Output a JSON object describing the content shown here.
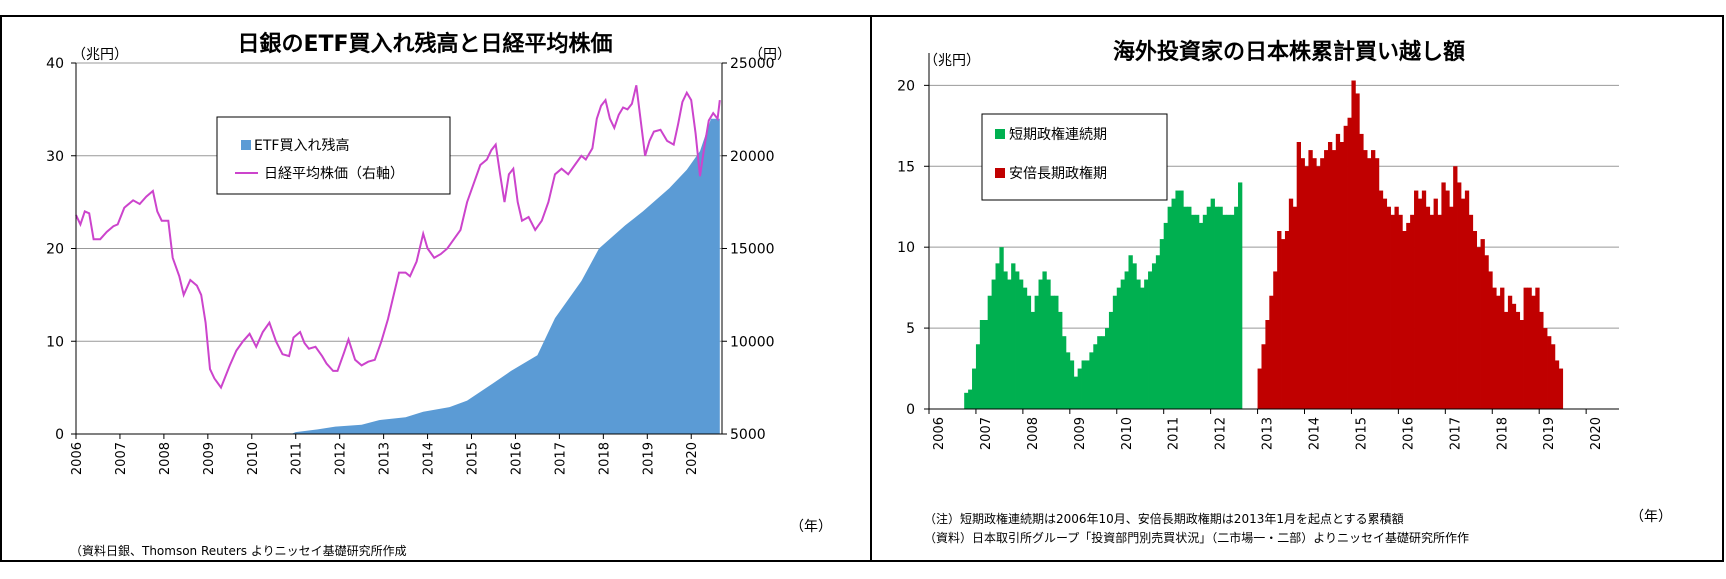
{
  "chart_data": [
    {
      "type": "bar+line",
      "title": "日銀のETF買入れ残高と日経平均株価",
      "ylabel_left": "（兆円）",
      "ylabel_right": "（円）",
      "xlabel": "（年）",
      "left_ticks": [
        "0",
        "10",
        "20",
        "30",
        "40"
      ],
      "right_ticks": [
        "5000",
        "10000",
        "15000",
        "20000",
        "25000"
      ],
      "left_range": [
        0,
        40
      ],
      "right_range": [
        5000,
        25000
      ],
      "x_ticks": [
        "2006",
        "2007",
        "2008",
        "2009",
        "2010",
        "2011",
        "2012",
        "2013",
        "2014",
        "2015",
        "2016",
        "2017",
        "2018",
        "2019",
        "2020"
      ],
      "legend": [
        "ETF買入れ残高",
        "日経平均株価（右軸）"
      ],
      "source": "（資料日銀、Thomson Reuters よりニッセイ基礎研究所作成",
      "colors": {
        "etf": "#5b9bd5",
        "nikkei": "#cc44cc",
        "grid": "#999999"
      },
      "grid": true,
      "etf_points": [
        [
          2010.9,
          0
        ],
        [
          2011.0,
          0.2
        ],
        [
          2011.5,
          0.5
        ],
        [
          2011.9,
          0.8
        ],
        [
          2012.5,
          1.0
        ],
        [
          2012.9,
          1.5
        ],
        [
          2013.5,
          1.8
        ],
        [
          2013.9,
          2.4
        ],
        [
          2014.5,
          2.9
        ],
        [
          2014.9,
          3.6
        ],
        [
          2015.5,
          5.5
        ],
        [
          2015.9,
          6.8
        ],
        [
          2016.5,
          8.5
        ],
        [
          2016.9,
          12.5
        ],
        [
          2017.5,
          16.5
        ],
        [
          2017.9,
          20.0
        ],
        [
          2018.5,
          22.5
        ],
        [
          2018.9,
          24.0
        ],
        [
          2019.5,
          26.5
        ],
        [
          2019.9,
          28.5
        ],
        [
          2020.2,
          30.5
        ],
        [
          2020.45,
          34.0
        ],
        [
          2020.65,
          34.0
        ]
      ],
      "nikkei_points": [
        [
          2006.0,
          16800
        ],
        [
          2006.1,
          16300
        ],
        [
          2006.2,
          17000
        ],
        [
          2006.3,
          16900
        ],
        [
          2006.4,
          15500
        ],
        [
          2006.55,
          15500
        ],
        [
          2006.7,
          15900
        ],
        [
          2006.85,
          16200
        ],
        [
          2006.95,
          16300
        ],
        [
          2007.1,
          17200
        ],
        [
          2007.3,
          17600
        ],
        [
          2007.45,
          17400
        ],
        [
          2007.6,
          17800
        ],
        [
          2007.75,
          18100
        ],
        [
          2007.85,
          17000
        ],
        [
          2007.95,
          16500
        ],
        [
          2008.1,
          16500
        ],
        [
          2008.2,
          14500
        ],
        [
          2008.35,
          13500
        ],
        [
          2008.45,
          12500
        ],
        [
          2008.6,
          13300
        ],
        [
          2008.75,
          13000
        ],
        [
          2008.85,
          12500
        ],
        [
          2008.95,
          11000
        ],
        [
          2009.05,
          8500
        ],
        [
          2009.15,
          8000
        ],
        [
          2009.3,
          7500
        ],
        [
          2009.5,
          8700
        ],
        [
          2009.65,
          9500
        ],
        [
          2009.8,
          10000
        ],
        [
          2009.95,
          10400
        ],
        [
          2010.1,
          9700
        ],
        [
          2010.25,
          10500
        ],
        [
          2010.4,
          11000
        ],
        [
          2010.55,
          10000
        ],
        [
          2010.7,
          9300
        ],
        [
          2010.85,
          9200
        ],
        [
          2010.95,
          10200
        ],
        [
          2011.1,
          10500
        ],
        [
          2011.2,
          9900
        ],
        [
          2011.3,
          9600
        ],
        [
          2011.45,
          9700
        ],
        [
          2011.6,
          9200
        ],
        [
          2011.7,
          8800
        ],
        [
          2011.85,
          8400
        ],
        [
          2011.95,
          8400
        ],
        [
          2012.1,
          9400
        ],
        [
          2012.2,
          10100
        ],
        [
          2012.35,
          9000
        ],
        [
          2012.5,
          8700
        ],
        [
          2012.65,
          8900
        ],
        [
          2012.8,
          9000
        ],
        [
          2012.95,
          10000
        ],
        [
          2013.1,
          11200
        ],
        [
          2013.2,
          12200
        ],
        [
          2013.35,
          13700
        ],
        [
          2013.5,
          13700
        ],
        [
          2013.6,
          13500
        ],
        [
          2013.75,
          14300
        ],
        [
          2013.9,
          15800
        ],
        [
          2014.0,
          15000
        ],
        [
          2014.15,
          14500
        ],
        [
          2014.3,
          14700
        ],
        [
          2014.45,
          15000
        ],
        [
          2014.6,
          15500
        ],
        [
          2014.75,
          16000
        ],
        [
          2014.9,
          17500
        ],
        [
          2015.05,
          18500
        ],
        [
          2015.2,
          19500
        ],
        [
          2015.35,
          19800
        ],
        [
          2015.45,
          20300
        ],
        [
          2015.55,
          20600
        ],
        [
          2015.65,
          19000
        ],
        [
          2015.75,
          17500
        ],
        [
          2015.85,
          19000
        ],
        [
          2015.95,
          19300
        ],
        [
          2016.05,
          17500
        ],
        [
          2016.15,
          16500
        ],
        [
          2016.3,
          16700
        ],
        [
          2016.45,
          16000
        ],
        [
          2016.6,
          16500
        ],
        [
          2016.75,
          17500
        ],
        [
          2016.9,
          19000
        ],
        [
          2017.05,
          19300
        ],
        [
          2017.2,
          19000
        ],
        [
          2017.35,
          19500
        ],
        [
          2017.5,
          20000
        ],
        [
          2017.6,
          19800
        ],
        [
          2017.75,
          20400
        ],
        [
          2017.85,
          22000
        ],
        [
          2017.95,
          22700
        ],
        [
          2018.05,
          23000
        ],
        [
          2018.15,
          22000
        ],
        [
          2018.25,
          21500
        ],
        [
          2018.35,
          22200
        ],
        [
          2018.45,
          22600
        ],
        [
          2018.55,
          22500
        ],
        [
          2018.65,
          22800
        ],
        [
          2018.75,
          23800
        ],
        [
          2018.85,
          21900
        ],
        [
          2018.95,
          20000
        ],
        [
          2019.05,
          20800
        ],
        [
          2019.15,
          21300
        ],
        [
          2019.3,
          21400
        ],
        [
          2019.45,
          20800
        ],
        [
          2019.6,
          20600
        ],
        [
          2019.7,
          21700
        ],
        [
          2019.8,
          22900
        ],
        [
          2019.9,
          23400
        ],
        [
          2020.0,
          23000
        ],
        [
          2020.1,
          21200
        ],
        [
          2020.2,
          18900
        ],
        [
          2020.3,
          20500
        ],
        [
          2020.4,
          21900
        ],
        [
          2020.5,
          22300
        ],
        [
          2020.6,
          22000
        ],
        [
          2020.65,
          23000
        ]
      ]
    },
    {
      "type": "bar",
      "title": "海外投資家の日本株累計買い越し額",
      "ylabel": "（兆円）",
      "xlabel": "（年）",
      "y_ticks": [
        "0",
        "5",
        "10",
        "15",
        "20"
      ],
      "y_range": [
        0,
        22
      ],
      "x_ticks": [
        "2006",
        "2007",
        "2008",
        "2009",
        "2010",
        "2011",
        "2012",
        "2013",
        "2014",
        "2015",
        "2016",
        "2017",
        "2018",
        "2019",
        "2020"
      ],
      "legend": [
        "短期政権連続期",
        "安倍長期政権期"
      ],
      "notes": [
        "（注）短期政権連続期は2006年10月、安倍長期政権期は2013年1月を起点とする累積額",
        "（資料）日本取引所グループ「投資部門別売買状況」（二市場一・二部）よりニッセイ基礎研究所作作"
      ],
      "colors": {
        "short": "#00b050",
        "abe": "#c00000",
        "grid": "#999999"
      },
      "grid": true,
      "series": [
        {
          "name": "短期政権連続期",
          "start": 2006.75,
          "values": [
            1.0,
            1.2,
            2.5,
            4.0,
            5.5,
            5.5,
            7.0,
            8.0,
            9.0,
            10.0,
            8.5,
            8.0,
            9.0,
            8.5,
            8.0,
            7.5,
            7.0,
            6.0,
            7.0,
            8.0,
            8.5,
            8.0,
            7.0,
            7.0,
            6.0,
            4.5,
            3.5,
            3.0,
            2.0,
            2.5,
            3.0,
            3.0,
            3.5,
            4.0,
            4.5,
            4.5,
            5.0,
            6.0,
            7.0,
            7.5,
            8.0,
            8.5,
            9.5,
            9.0,
            8.0,
            7.5,
            8.0,
            8.5,
            9.0,
            9.5,
            10.5,
            11.5,
            12.5,
            13.0,
            13.5,
            13.5,
            12.5,
            12.5,
            12.0,
            12.0,
            11.5,
            12.0,
            12.5,
            13.0,
            12.5,
            12.5,
            12.0,
            12.0,
            12.0,
            12.5,
            14.0
          ]
        },
        {
          "name": "安倍長期政権期",
          "start": 2013.0,
          "values": [
            2.5,
            4.0,
            5.5,
            7.0,
            8.5,
            11.0,
            10.5,
            11.0,
            13.0,
            12.5,
            16.5,
            15.5,
            15.0,
            16.0,
            15.5,
            15.0,
            15.5,
            16.0,
            16.5,
            16.0,
            17.0,
            16.5,
            17.5,
            18.0,
            20.3,
            19.5,
            17.0,
            16.0,
            15.5,
            16.0,
            15.5,
            13.5,
            13.0,
            12.5,
            12.0,
            12.5,
            12.0,
            11.0,
            11.5,
            12.0,
            13.5,
            13.0,
            13.5,
            12.5,
            12.0,
            13.0,
            12.0,
            14.0,
            13.5,
            12.5,
            15.0,
            14.0,
            13.0,
            13.5,
            12.0,
            11.0,
            10.0,
            10.5,
            9.5,
            8.5,
            7.5,
            7.0,
            7.5,
            6.0,
            7.0,
            6.5,
            6.0,
            5.5,
            7.5,
            7.5,
            7.0,
            7.5,
            6.0,
            5.0,
            4.5,
            4.0,
            3.0,
            2.5
          ]
        }
      ]
    }
  ]
}
